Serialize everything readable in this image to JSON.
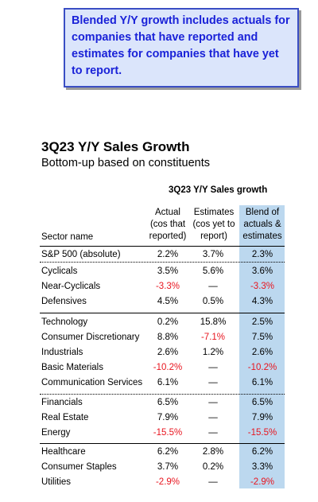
{
  "callout": "Blended Y/Y growth includes actuals for companies that have reported and estimates for companies that have yet to report.",
  "title": "3Q23 Y/Y Sales Growth",
  "subtitle": "Bottom-up based on constituents",
  "table_title": "3Q23 Y/Y Sales growth",
  "headers": {
    "sector": "Sector name",
    "actual": [
      "Actual",
      "(cos that",
      "reported)"
    ],
    "estimates": [
      "Estimates",
      "(cos yet to",
      "report)"
    ],
    "blend": [
      "Blend of",
      "actuals &",
      "estimates"
    ]
  },
  "rows": [
    {
      "name": "S&P 500 (absolute)",
      "actual": "2.2%",
      "estimates": "3.7%",
      "blend": "2.3%"
    },
    {
      "name": "Cyclicals",
      "actual": "3.5%",
      "estimates": "5.6%",
      "blend": "3.6%"
    },
    {
      "name": "Near-Cyclicals",
      "actual": "-3.3%",
      "estimates": "—",
      "blend": "-3.3%"
    },
    {
      "name": "Defensives",
      "actual": "4.5%",
      "estimates": "0.5%",
      "blend": "4.3%"
    },
    {
      "name": "Technology",
      "actual": "0.2%",
      "estimates": "15.8%",
      "blend": "2.5%"
    },
    {
      "name": "Consumer Discretionary",
      "actual": "8.8%",
      "estimates": "-7.1%",
      "blend": "7.5%"
    },
    {
      "name": "Industrials",
      "actual": "2.6%",
      "estimates": "1.2%",
      "blend": "2.6%"
    },
    {
      "name": "Basic Materials",
      "actual": "-10.2%",
      "estimates": "—",
      "blend": "-10.2%"
    },
    {
      "name": "Communication Services",
      "actual": "6.1%",
      "estimates": "—",
      "blend": "6.1%"
    },
    {
      "name": "Financials",
      "actual": "6.5%",
      "estimates": "—",
      "blend": "6.5%"
    },
    {
      "name": "Real Estate",
      "actual": "7.9%",
      "estimates": "—",
      "blend": "7.9%"
    },
    {
      "name": "Energy",
      "actual": "-15.5%",
      "estimates": "—",
      "blend": "-15.5%"
    },
    {
      "name": "Healthcare",
      "actual": "6.2%",
      "estimates": "2.8%",
      "blend": "6.2%"
    },
    {
      "name": "Consumer Staples",
      "actual": "3.7%",
      "estimates": "0.2%",
      "blend": "3.3%"
    },
    {
      "name": "Utilities",
      "actual": "-2.9%",
      "estimates": "—",
      "blend": "-2.9%"
    }
  ]
}
